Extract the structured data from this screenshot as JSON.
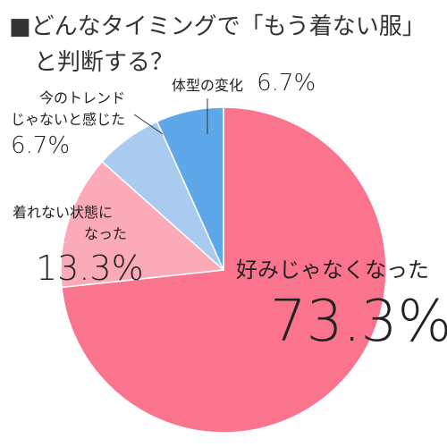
{
  "title": {
    "line1": "■どんなタイミングで「もう着ない服」",
    "line2": "と判断する？"
  },
  "chart_data": {
    "type": "pie",
    "title": "■どんなタイミングで「もう着ない服」と判断する？",
    "start": "12 o'clock",
    "direction": "clockwise",
    "slices": [
      {
        "label": "好みじゃなくなった",
        "value": 73.3,
        "value_label": "73.3%",
        "color": "#f9748c"
      },
      {
        "label": "着れない状態になった",
        "value": 13.3,
        "value_label": "13.3%",
        "color": "#fbaab8"
      },
      {
        "label": "今のトレンドじゃないと感じた",
        "value": 6.7,
        "value_label": "6.7%",
        "color": "#a9cbf0"
      },
      {
        "label": "体型の変化",
        "value": 6.7,
        "value_label": "6.7%",
        "color": "#5ea7e8"
      }
    ]
  },
  "labels": {
    "s0": {
      "name": "好みじゃなくなった"
    },
    "s1": {
      "line1": "着れない状態に",
      "line2": "なった"
    },
    "s2": {
      "line1": "今のトレンド",
      "line2": "じゃないと感じた"
    },
    "s3": {
      "name": "体型の変化"
    }
  }
}
